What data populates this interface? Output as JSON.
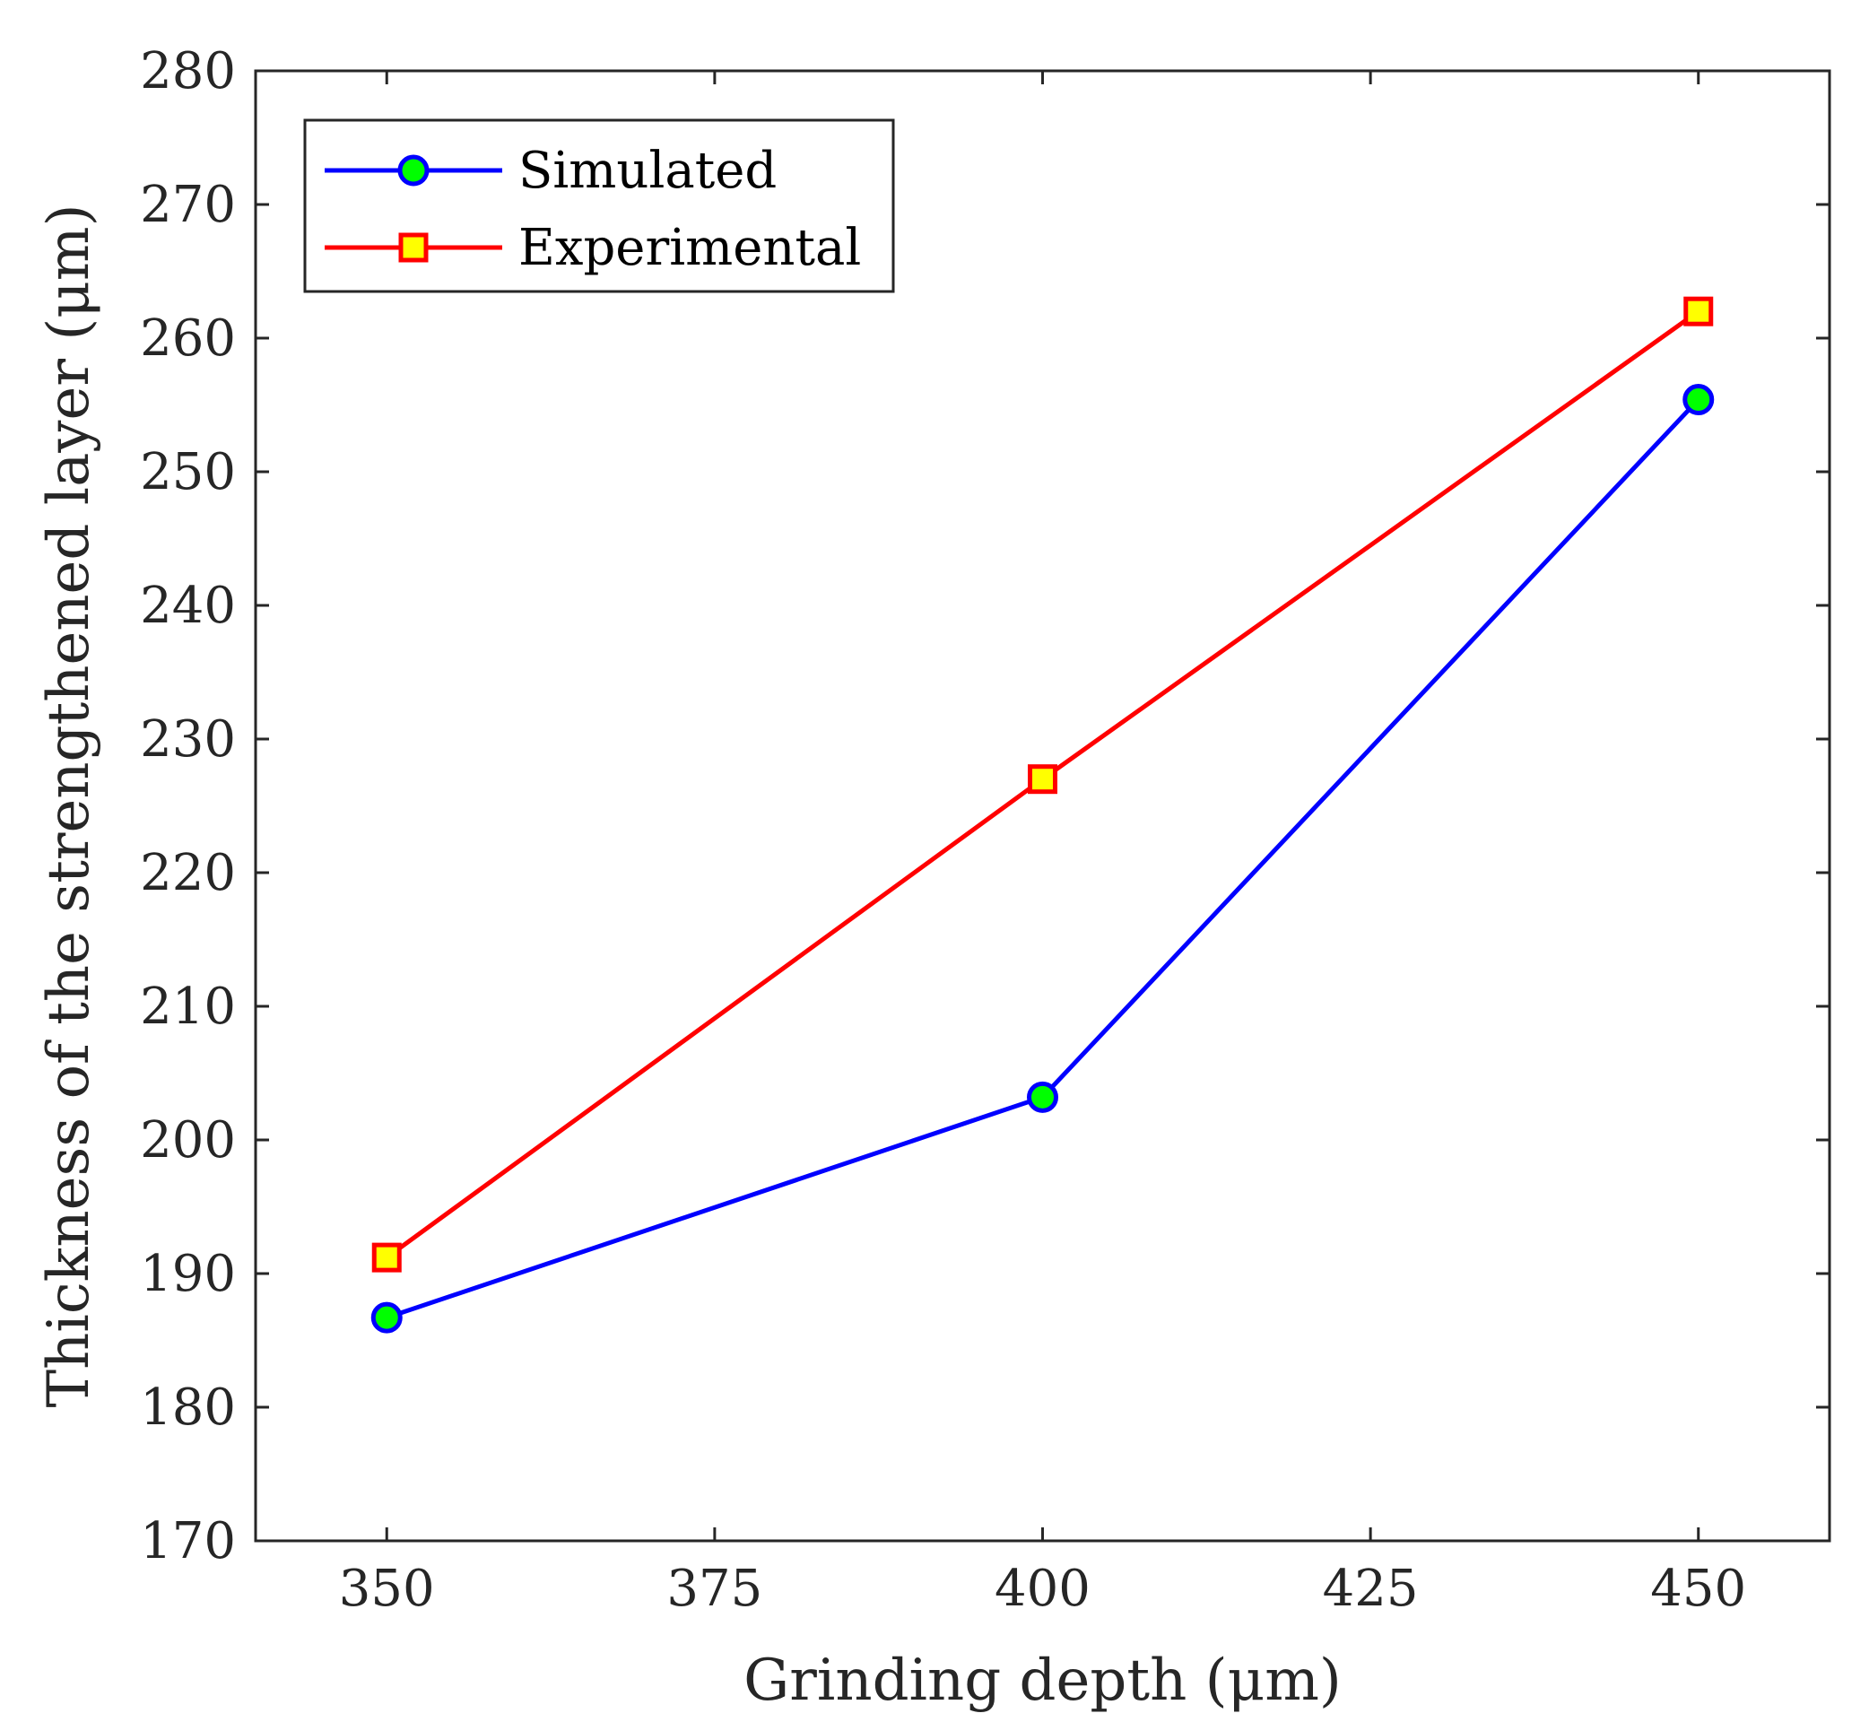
{
  "chart_data": {
    "type": "line",
    "title": "",
    "xlabel": "Grinding depth (μm)",
    "ylabel": "Thickness of the strengthened layer (μm)",
    "xlim": [
      340,
      460
    ],
    "ylim": [
      170,
      280
    ],
    "xticks": [
      350,
      375,
      400,
      425,
      450
    ],
    "yticks": [
      170,
      180,
      190,
      200,
      210,
      220,
      230,
      240,
      250,
      260,
      270,
      280
    ],
    "grid": false,
    "legend_position": "top-left",
    "x": [
      350,
      400,
      450
    ],
    "series": [
      {
        "name": "Simulated",
        "values": [
          186.7,
          203.2,
          255.4
        ],
        "line_color": "#0000ff",
        "marker": "circle",
        "marker_fill": "#00ff00",
        "marker_edge": "#0000ff"
      },
      {
        "name": "Experimental",
        "values": [
          191.2,
          227.0,
          262.0
        ],
        "line_color": "#ff0000",
        "marker": "square",
        "marker_fill": "#ffff00",
        "marker_edge": "#ff0000"
      }
    ]
  }
}
